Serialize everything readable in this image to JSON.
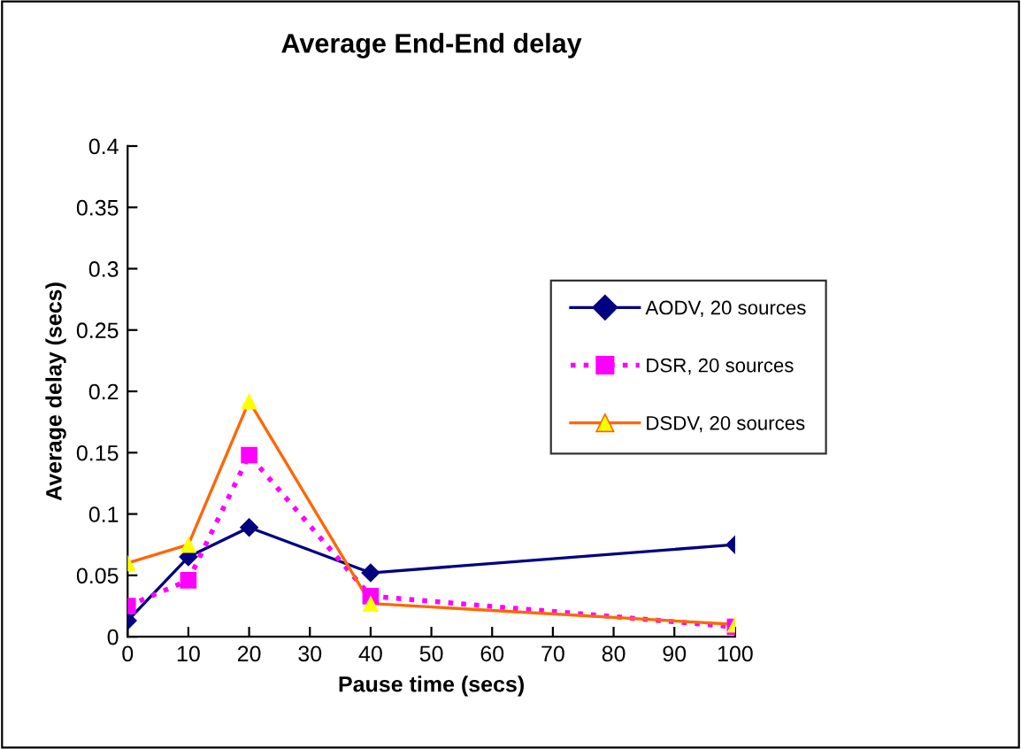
{
  "chart_data": {
    "type": "line",
    "title": "Average End-End delay",
    "xlabel": "Pause time (secs)",
    "ylabel": "Average delay (secs)",
    "x": [
      0,
      10,
      20,
      40,
      100
    ],
    "series": [
      {
        "name": "AODV, 20 sources",
        "color": "#000080",
        "marker": "diamond",
        "line_style": "solid",
        "values": [
          0.013,
          0.065,
          0.089,
          0.052,
          0.075
        ]
      },
      {
        "name": "DSR, 20 sources",
        "color": "#ff00ff",
        "marker": "square",
        "line_style": "dotted",
        "values": [
          0.025,
          0.046,
          0.148,
          0.033,
          0.008
        ]
      },
      {
        "name": "DSDV, 20 sources",
        "color": "#ff6600",
        "colors": [
          "#ffff00",
          "#ffff00",
          "#ffff00",
          "#ffff00",
          "#ffff00"
        ],
        "marker": "triangle",
        "line_style": "solid",
        "values": [
          0.06,
          0.075,
          0.192,
          0.027,
          0.01
        ]
      }
    ],
    "xlim": [
      0,
      100
    ],
    "xticks": [
      0,
      10,
      20,
      30,
      40,
      50,
      60,
      70,
      80,
      90,
      100
    ],
    "ylim": [
      0,
      0.4
    ],
    "yticks": [
      0,
      0.05,
      0.1,
      0.15,
      0.2,
      0.25,
      0.3,
      0.35,
      0.4
    ],
    "grid": false,
    "legend": "right"
  }
}
